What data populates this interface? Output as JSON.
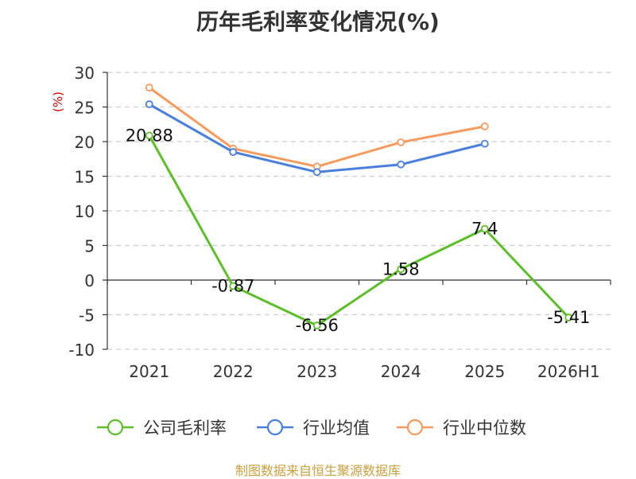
{
  "chart_data": {
    "type": "line",
    "title": "历年毛利率变化情况(%)",
    "ylabel": "(%)",
    "xlabel": "",
    "categories": [
      "2021",
      "2022",
      "2023",
      "2024",
      "2025",
      "2026H1"
    ],
    "ylim": [
      -10,
      30
    ],
    "yticks": [
      "30",
      "25",
      "20",
      "15",
      "10",
      "5",
      "0",
      "-5",
      "-10"
    ],
    "grid": true,
    "legend_position": "bottom",
    "series": [
      {
        "name": "公司毛利率",
        "color": "#5cbf2a",
        "values": [
          20.88,
          -0.87,
          -6.56,
          1.58,
          7.4,
          -5.41
        ],
        "labels": [
          "20.88",
          "-0.87",
          "-6.56",
          "1.58",
          "7.4",
          "-5.41"
        ]
      },
      {
        "name": "行业均值",
        "color": "#4a7fdb",
        "values": [
          25.4,
          18.5,
          15.6,
          16.7,
          19.7,
          null
        ]
      },
      {
        "name": "行业中位数",
        "color": "#f79a5e",
        "values": [
          27.8,
          19.0,
          16.4,
          19.9,
          22.2,
          null
        ]
      }
    ]
  },
  "footer": {
    "source": "制图数据来自恒生聚源数据库"
  }
}
